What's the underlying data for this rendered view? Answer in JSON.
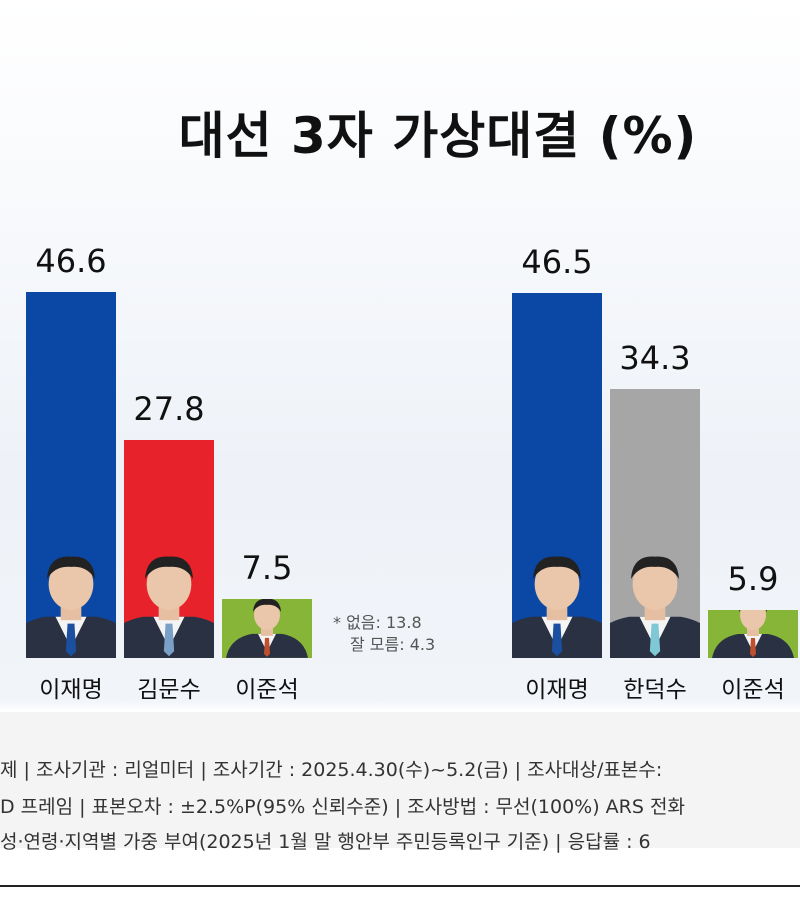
{
  "title": "대선 3자 가상대결 (%)",
  "colors": {
    "blue": "#0b47a4",
    "red": "#e8222b",
    "gray": "#a6a6a6",
    "green": "#86b537"
  },
  "chart_data": [
    {
      "type": "bar",
      "categories": [
        "이재명",
        "김문수",
        "이준석"
      ],
      "values": [
        46.6,
        27.8,
        7.5
      ],
      "value_labels": [
        "46.6",
        "27.8",
        "7.5"
      ],
      "colors": [
        "#0b47a4",
        "#e8222b",
        "#86b537"
      ]
    },
    {
      "type": "bar",
      "categories": [
        "이재명",
        "한덕수",
        "이준석"
      ],
      "values": [
        46.5,
        34.3,
        5.9
      ],
      "value_labels": [
        "46.5",
        "34.3",
        "5.9"
      ],
      "colors": [
        "#0b47a4",
        "#a6a6a6",
        "#86b537"
      ]
    }
  ],
  "notes": [
    "* 없음: 13.8",
    "잘 모름: 4.3"
  ],
  "footer": [
    "제 | 조사기관 : 리얼미터  |  조사기간 : 2025.4.30(수)~5.2(금) | 조사대상/표본수:",
    "D 프레임 | 표본오차 : ±2.5%P(95% 신뢰수준) | 조사방법 : 무선(100%) ARS 전화",
    " 성·연령·지역별 가중 부여(2025년 1월 말 행안부 주민등록인구 기준) | 응답률 : 6"
  ]
}
